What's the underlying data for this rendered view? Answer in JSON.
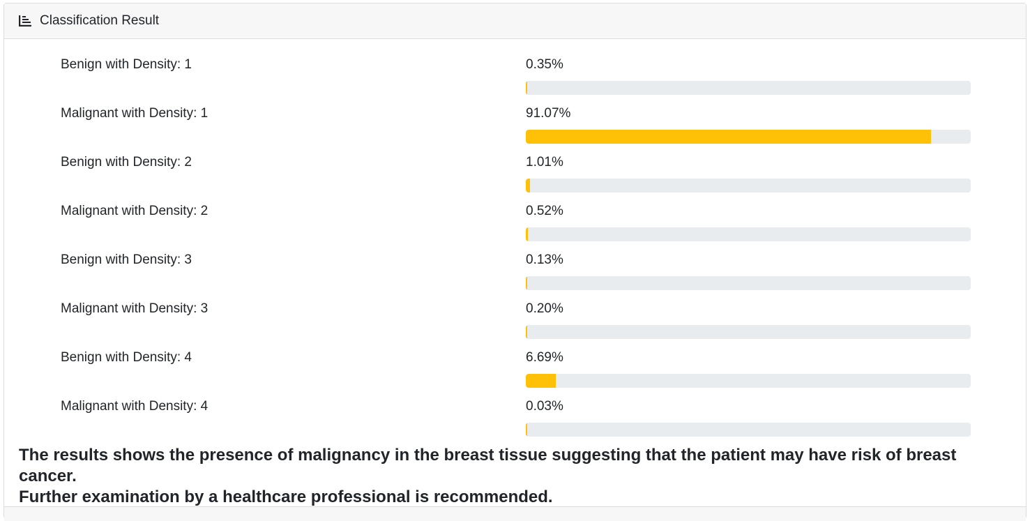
{
  "header": {
    "title": "Classification Result",
    "icon": "chart-bar-icon"
  },
  "results": [
    {
      "label": "Benign with Density: 1",
      "value_text": "0.35%",
      "value": 0.35
    },
    {
      "label": "Malignant with Density: 1",
      "value_text": "91.07%",
      "value": 91.07
    },
    {
      "label": "Benign with Density: 2",
      "value_text": "1.01%",
      "value": 1.01
    },
    {
      "label": "Malignant with Density: 2",
      "value_text": "0.52%",
      "value": 0.52
    },
    {
      "label": "Benign with Density: 3",
      "value_text": "0.13%",
      "value": 0.13
    },
    {
      "label": "Malignant with Density: 3",
      "value_text": "0.20%",
      "value": 0.2
    },
    {
      "label": "Benign with Density: 4",
      "value_text": "6.69%",
      "value": 6.69
    },
    {
      "label": "Malignant with Density: 4",
      "value_text": "0.03%",
      "value": 0.03
    }
  ],
  "summary": {
    "line1": "The results shows the presence of malignancy in the breast tissue suggesting that the patient may have risk of breast cancer.",
    "line2": "Further examination by a healthcare professional is recommended."
  },
  "colors": {
    "bar_fill": "#ffc107",
    "bar_track": "#e9ecef"
  }
}
